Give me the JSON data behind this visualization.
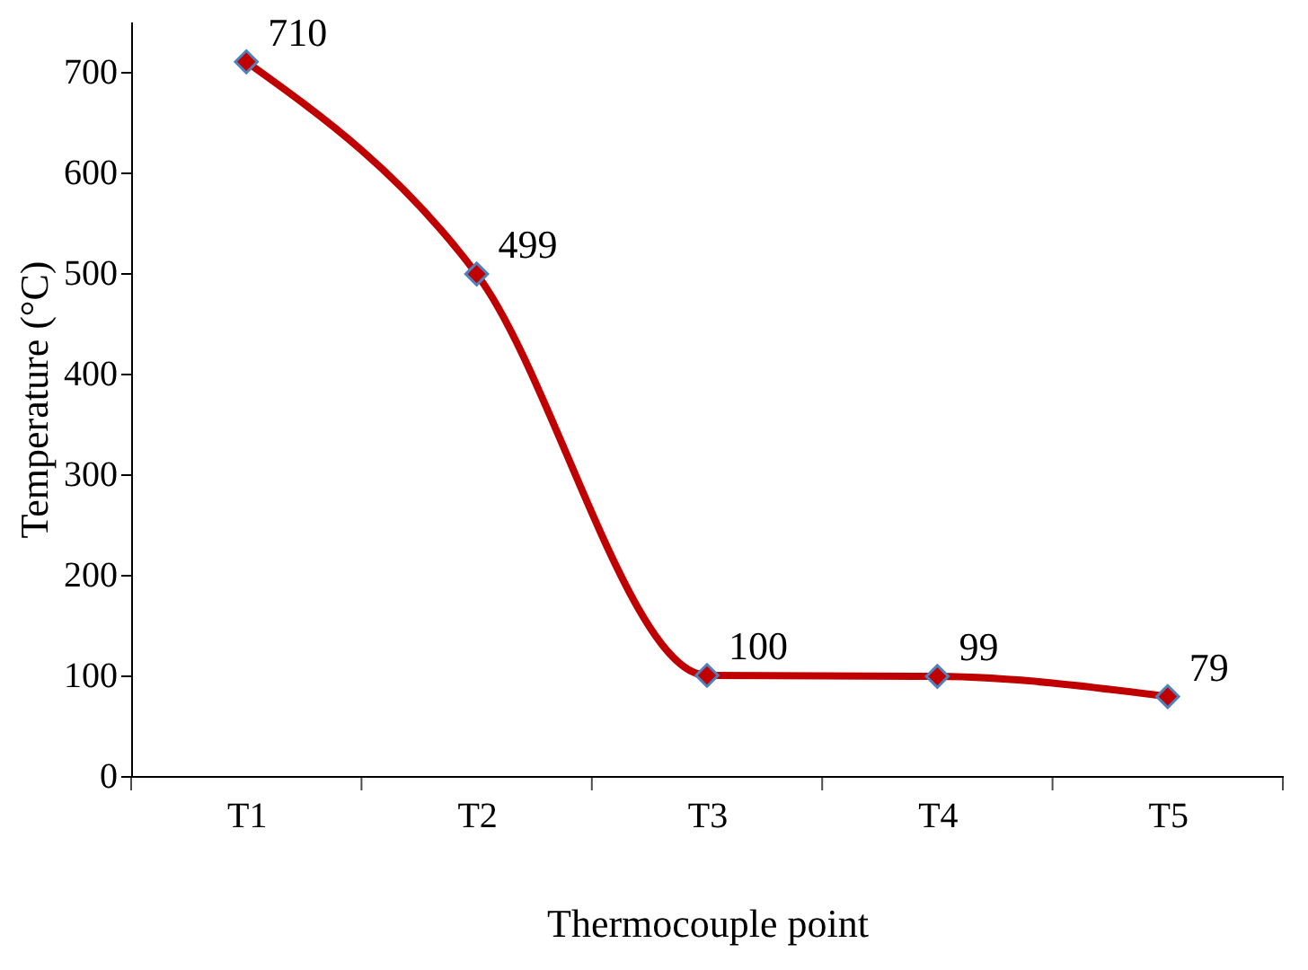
{
  "chart_data": {
    "type": "line",
    "xlabel": "Thermocouple point",
    "ylabel": "Temperature (°C)",
    "categories": [
      "T1",
      "T2",
      "T3",
      "T4",
      "T5"
    ],
    "series": [
      {
        "color": "#c00000",
        "values": [
          710,
          499,
          100,
          99,
          79
        ]
      }
    ],
    "ylim": [
      0,
      750
    ],
    "yticks": [
      0,
      100,
      200,
      300,
      400,
      500,
      600,
      700
    ],
    "data_labels": true,
    "marker": "diamond",
    "line_style": "solid",
    "grid": false
  }
}
